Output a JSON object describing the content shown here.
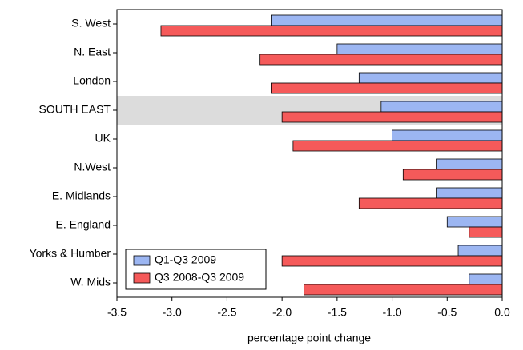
{
  "chart_data": {
    "type": "barh",
    "categories": [
      "S. West",
      "N. East",
      "London",
      "SOUTH EAST",
      "UK",
      "N.West",
      "E. Midlands",
      "E. England",
      "Yorks & Humber",
      "W. Mids"
    ],
    "series": [
      {
        "name": "Q1-Q3 2009",
        "color": "#9cb6f2",
        "values": [
          -2.1,
          -1.5,
          -1.3,
          -1.1,
          -1.0,
          -0.6,
          -0.6,
          -0.5,
          -0.4,
          -0.3
        ]
      },
      {
        "name": "Q3 2008-Q3 2009",
        "color": "#f55a5a",
        "values": [
          -3.1,
          -2.2,
          -2.1,
          -2.0,
          -1.9,
          -0.9,
          -1.3,
          -0.3,
          -2.0,
          -1.8
        ]
      }
    ],
    "xlabel": "percentage point change",
    "xlim": [
      -3.5,
      0
    ],
    "xticks": [
      -3.5,
      {
        "value": -3,
        "label": "-3.0"
      },
      -2.5,
      {
        "value": -2,
        "label": "-2.0"
      },
      -1.5,
      {
        "value": -1,
        "label": "-1.0"
      },
      -0.5,
      {
        "value": 0,
        "label": "0.0"
      }
    ],
    "highlight": 3,
    "legend": "lower left"
  }
}
